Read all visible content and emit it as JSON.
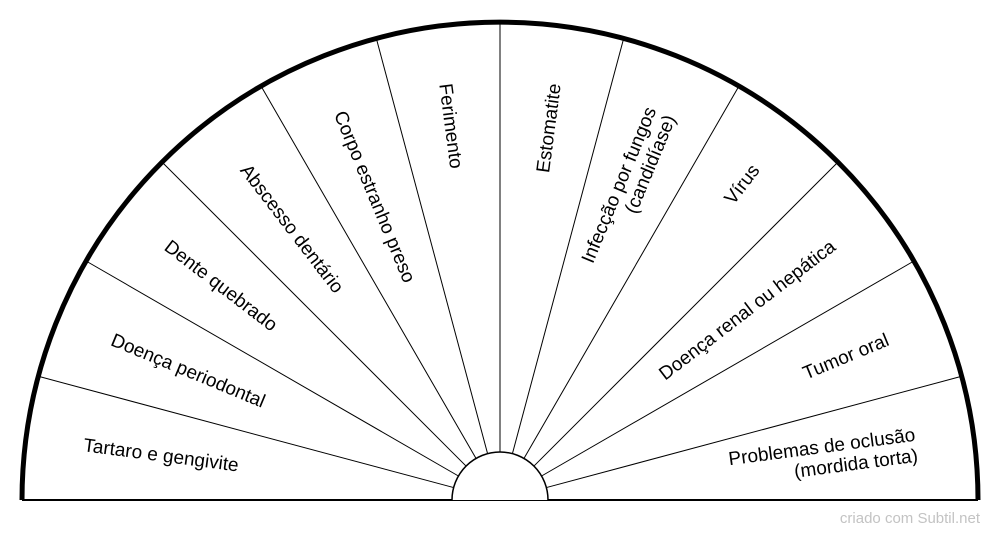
{
  "segments": [
    {
      "lines": [
        "Tartaro e gengivite"
      ]
    },
    {
      "lines": [
        "Doença periodontal"
      ]
    },
    {
      "lines": [
        "Dente quebrado"
      ]
    },
    {
      "lines": [
        "Abscesso dentário"
      ]
    },
    {
      "lines": [
        "Corpo estranho preso"
      ]
    },
    {
      "lines": [
        "Ferimento"
      ]
    },
    {
      "lines": [
        "Estomatite"
      ]
    },
    {
      "lines": [
        "Infecção por fungos",
        "(candidíase)"
      ]
    },
    {
      "lines": [
        "Vírus"
      ]
    },
    {
      "lines": [
        "Doença renal ou hepática"
      ]
    },
    {
      "lines": [
        "Tumor oral"
      ]
    },
    {
      "lines": [
        "Problemas de oclusão",
        "(mordida torta)"
      ]
    }
  ],
  "footer": {
    "credit": "criado com Subtil.net"
  },
  "colors": {
    "line": "#000000",
    "background": "#ffffff",
    "credit": "#c3c3c3"
  }
}
